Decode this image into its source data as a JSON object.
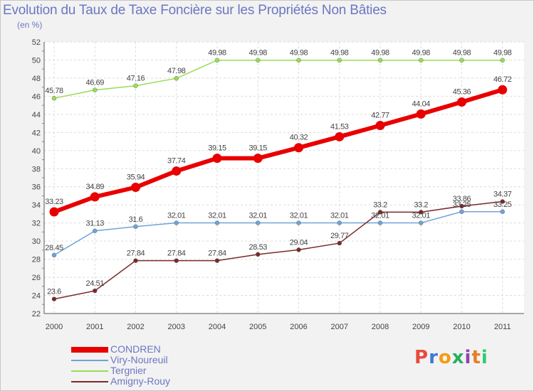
{
  "header": {
    "title": "Evolution du Taux de Taxe Foncière sur les Propriétés Non Bâties",
    "subtitle": "(en %)"
  },
  "logo": {
    "text": "Proxiti",
    "colors": [
      "#e74c3c",
      "#3a7bd5",
      "#f39c12",
      "#27ae60",
      "#8e44ad",
      "#e67e22",
      "#2ecc71"
    ]
  },
  "chart_data": {
    "type": "line",
    "title": "Evolution du Taux de Taxe Foncière sur les Propriétés Non Bâties",
    "ylabel": "(en %)",
    "xlabel": "",
    "categories": [
      "2000",
      "2001",
      "2002",
      "2003",
      "2004",
      "2005",
      "2006",
      "2007",
      "2008",
      "2009",
      "2010",
      "2011"
    ],
    "ylim": [
      22,
      52
    ],
    "yticks": [
      22,
      24,
      26,
      28,
      30,
      32,
      34,
      36,
      38,
      40,
      42,
      44,
      46,
      48,
      50,
      52
    ],
    "grid": true,
    "series": [
      {
        "name": "CONDREN",
        "color": "#e80000",
        "values": [
          33.23,
          34.89,
          35.94,
          37.74,
          39.15,
          39.15,
          40.32,
          41.53,
          42.77,
          44.04,
          45.36,
          46.72
        ],
        "labels": [
          "33.23",
          "34.89",
          "35.94",
          "37.74",
          "39.15",
          "39.15",
          "40.32",
          "41.53",
          "42.77",
          "44.04",
          "45.36",
          "46.72"
        ]
      },
      {
        "name": "Viry-Noureuil",
        "color": "#6fa3d8",
        "values": [
          28.45,
          31.13,
          31.6,
          32.01,
          32.01,
          32.01,
          32.01,
          32.01,
          32.01,
          32.01,
          33.25,
          33.25
        ],
        "labels": [
          "28.45",
          "31.13",
          "31.6",
          "32.01",
          "32.01",
          "32.01",
          "32.01",
          "32.01",
          "32.01",
          "32.01",
          "33.25",
          "33.25"
        ]
      },
      {
        "name": "Tergnier",
        "color": "#99dd55",
        "values": [
          45.78,
          46.69,
          47.16,
          47.98,
          49.98,
          49.98,
          49.98,
          49.98,
          49.98,
          49.98,
          49.98,
          49.98
        ],
        "labels": [
          "45.78",
          "46.69",
          "47.16",
          "47.98",
          "49.98",
          "49.98",
          "49.98",
          "49.98",
          "49.98",
          "49.98",
          "49.98",
          "49.98"
        ]
      },
      {
        "name": "Amigny-Rouy",
        "color": "#7a2a2a",
        "values": [
          23.6,
          24.51,
          27.84,
          27.84,
          27.84,
          28.53,
          29.04,
          29.77,
          33.2,
          33.2,
          33.86,
          34.37
        ],
        "labels": [
          "23.6",
          "24.51",
          "27.84",
          "27.84",
          "27.84",
          "28.53",
          "29.04",
          "29.77",
          "33.2",
          "33.2",
          "33.86",
          "34.37"
        ]
      }
    ],
    "legend": "bottom-left"
  }
}
